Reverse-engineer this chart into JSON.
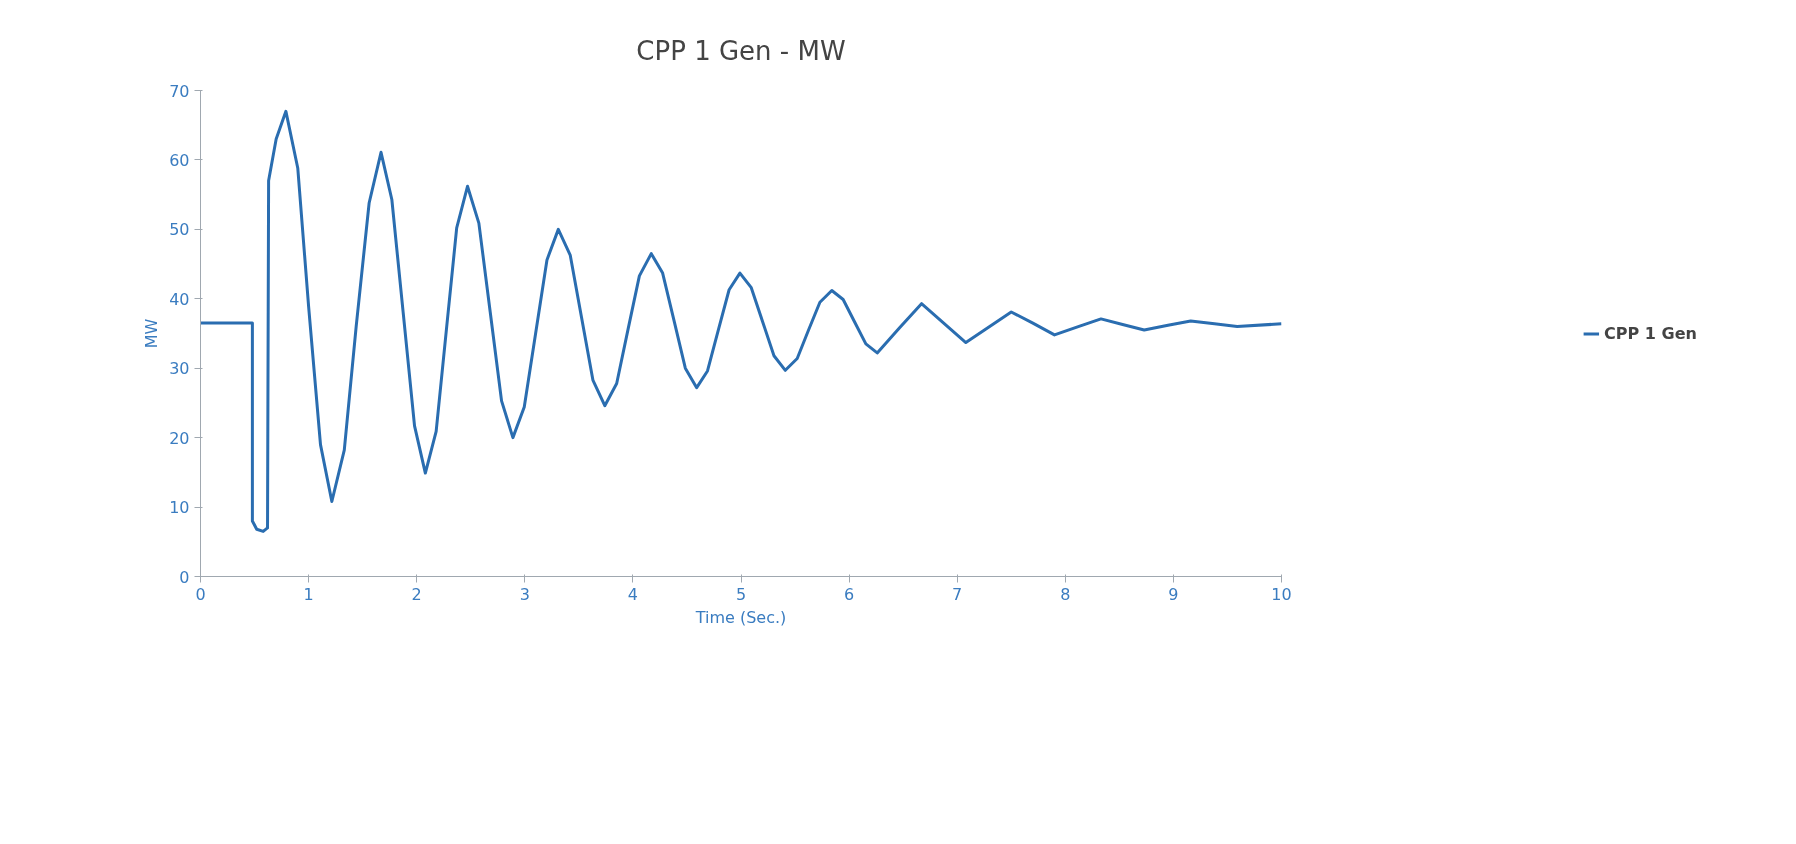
{
  "chart_data": {
    "type": "line",
    "title": "CPP 1 Gen - MW",
    "xlabel": "Time (Sec.)",
    "ylabel": "MW",
    "xlim": [
      0,
      10
    ],
    "xticks": [
      0,
      1,
      2,
      3,
      4,
      5,
      6,
      7,
      8,
      9,
      10
    ],
    "ylim": [
      0,
      70
    ],
    "yticks": [
      0,
      10,
      20,
      30,
      40,
      50,
      60,
      70
    ],
    "grid": false,
    "legend": "right",
    "marker": "none",
    "line_style": "solid",
    "series": [
      {
        "name": "CPP 1 Gen",
        "color": "#2a6db0",
        "x": [
          0,
          0.48,
          0.48,
          0.52,
          0.58,
          0.62,
          0.63,
          0.7,
          0.79,
          0.9,
          1.0,
          1.11,
          1.215,
          1.33,
          1.44,
          1.56,
          1.67,
          1.77,
          1.875,
          1.98,
          2.08,
          2.18,
          2.275,
          2.37,
          2.47,
          2.575,
          2.68,
          2.785,
          2.89,
          2.995,
          3.1,
          3.205,
          3.31,
          3.42,
          3.525,
          3.63,
          3.74,
          3.85,
          3.955,
          4.06,
          4.17,
          4.275,
          4.38,
          4.485,
          4.59,
          4.69,
          4.79,
          4.89,
          4.99,
          5.095,
          5.2,
          5.305,
          5.41,
          5.52,
          5.625,
          5.73,
          5.84,
          5.945,
          6.05,
          6.155,
          6.26,
          6.465,
          6.67,
          6.875,
          7.08,
          7.29,
          7.5,
          7.7,
          7.9,
          8.12,
          8.33,
          8.53,
          8.73,
          8.95,
          9.16,
          9.38,
          9.59,
          10
        ],
        "values": [
          36.5,
          36.5,
          8,
          6.8,
          6.5,
          7,
          57,
          63,
          67,
          58.8,
          38.9,
          19.0,
          10.8,
          18.2,
          36,
          53.8,
          61.1,
          54.3,
          38,
          21.7,
          14.9,
          20.9,
          35.6,
          50.2,
          56.2,
          50.9,
          38.1,
          25.3,
          20.0,
          24.4,
          35,
          45.6,
          50,
          46.3,
          37.3,
          28.3,
          24.6,
          27.8,
          35.6,
          43.3,
          46.5,
          43.7,
          36.9,
          30.0,
          27.2,
          29.6,
          35.5,
          41.3,
          43.7,
          41.6,
          36.7,
          31.8,
          29.7,
          31.4,
          35.5,
          39.5,
          41.2,
          39.9,
          36.7,
          33.5,
          32.2,
          35.8,
          39.3,
          36.5,
          33.7,
          35.9,
          38.1,
          36.5,
          34.8,
          36.0,
          37.1,
          36.3,
          35.5,
          36.2,
          36.8,
          36.4,
          36.0,
          36.4
        ]
      }
    ]
  }
}
